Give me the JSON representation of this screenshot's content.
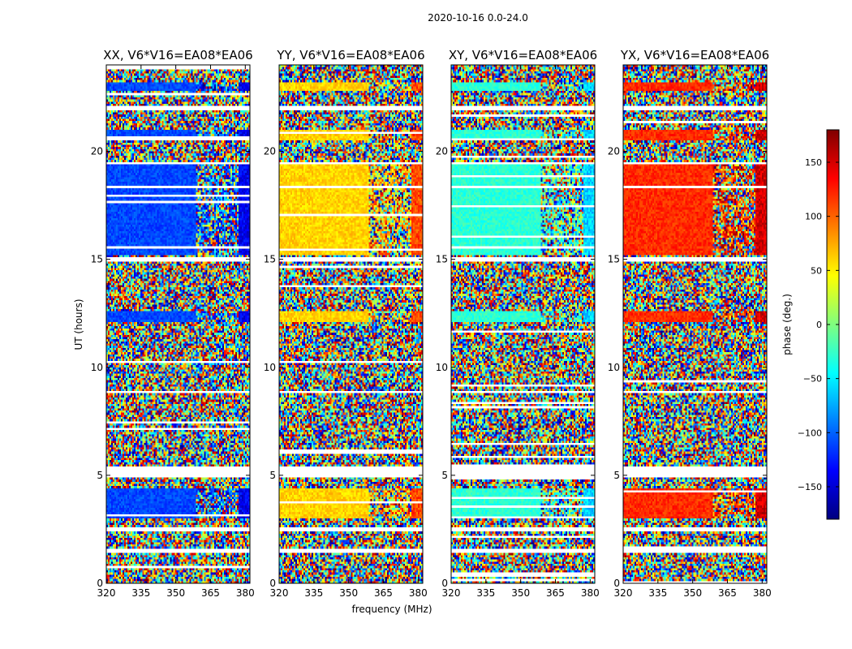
{
  "suptitle": "2020-10-16 0.0-24.0",
  "chart_data": {
    "type": "heatmap",
    "xlabel": "frequency (MHz)",
    "ylabel": "UT (hours)",
    "xlim": [
      320,
      382
    ],
    "ylim": [
      0,
      24
    ],
    "xticks": [
      320,
      335,
      350,
      365,
      380
    ],
    "yticks": [
      0,
      5,
      10,
      15,
      20
    ],
    "colorbar": {
      "label": "phase (deg.)",
      "range": [
        -180,
        180
      ],
      "ticks": [
        -150,
        -100,
        -50,
        0,
        50,
        100,
        150
      ],
      "colormap": [
        "#00007f",
        "#0000ff",
        "#007fff",
        "#00ffff",
        "#7fff7f",
        "#ffff00",
        "#ff7f00",
        "#ff0000",
        "#7f0000"
      ]
    },
    "panels": [
      {
        "title": "XX, V6*V16=EA08*EA06",
        "coherent_phase_deg": -110,
        "edge_phase_deg": -140
      },
      {
        "title": "YY, V6*V16=EA08*EA06",
        "coherent_phase_deg": 60,
        "edge_phase_deg": 110
      },
      {
        "title": "XY, V6*V16=EA08*EA06",
        "coherent_phase_deg": -30,
        "edge_phase_deg": -60
      },
      {
        "title": "YX, V6*V16=EA08*EA06",
        "coherent_phase_deg": 120,
        "edge_phase_deg": 150
      }
    ],
    "coherent_intervals_hours": [
      [
        15.2,
        19.4
      ],
      [
        12.1,
        12.6
      ],
      [
        20.5,
        21.0
      ],
      [
        3.0,
        4.4
      ],
      [
        22.8,
        23.2
      ]
    ],
    "gap_intervals_hours": [
      [
        1.4,
        1.6
      ],
      [
        2.4,
        2.6
      ],
      [
        4.9,
        5.4
      ],
      [
        8.8,
        8.9
      ],
      [
        14.9,
        15.1
      ],
      [
        18.3,
        18.4
      ],
      [
        21.9,
        22.1
      ],
      [
        19.4,
        19.5
      ]
    ]
  }
}
